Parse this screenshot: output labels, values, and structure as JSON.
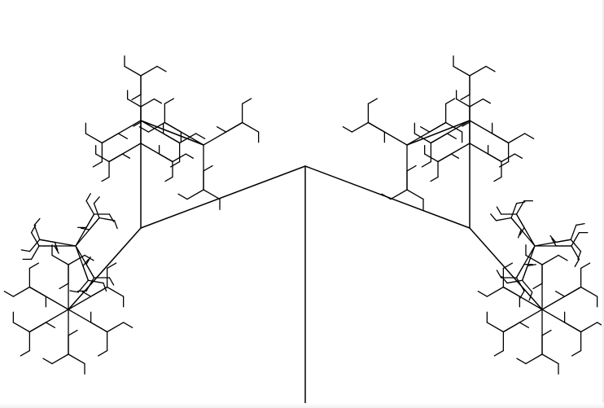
{
  "drawing": {
    "background_color": "#ffffff",
    "line_color": "#000000",
    "shape": "recursive branching tree fractal (turtle-graphics style)",
    "recursion_depth": 4,
    "branches_per_node": 3
  }
}
